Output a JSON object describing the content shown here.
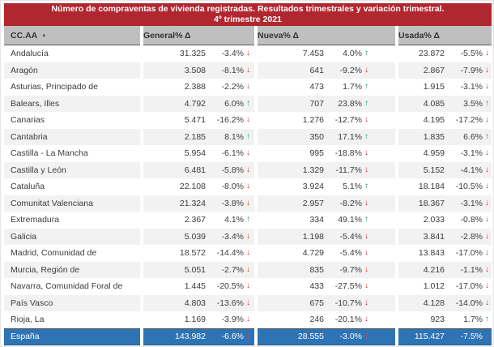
{
  "title": {
    "line1": "Número de compraventas de vivienda registradas. Resultados trimestrales  y variación trimestral.",
    "line2": "4º trimestre 2021"
  },
  "columns": {
    "ccaa": "CC.AA",
    "general": "General",
    "pct_delta_general": "% Δ",
    "nueva": "Nueva",
    "pct_delta_nueva": "% Δ",
    "usada": "Usada",
    "pct_delta_usada": "% Δ"
  },
  "icons": {
    "sort_asc": "▲",
    "up_arrow": "↑",
    "down_arrow": "↓"
  },
  "colors": {
    "title_bg": "#B1272F",
    "title_text": "#FFFFFF",
    "header_bg": "#BFBFBF",
    "header_text": "#333333",
    "row_text": "#3B3B3B",
    "row_alt_bg": "#F2F2F2",
    "total_bg": "#2E74B5",
    "total_text": "#FFFFFF",
    "up_green": "#00A550",
    "down_red": "#E8282B"
  },
  "chart_data": {
    "type": "table",
    "title": "Número de compraventas de vivienda registradas. Resultados trimestrales y variación trimestral.",
    "subtitle": "4º trimestre 2021",
    "columns": [
      "CC.AA",
      "General",
      "% Δ",
      "Nueva",
      "% Δ",
      "Usada",
      "% Δ"
    ],
    "rows": [
      {
        "name": "Andalucía",
        "general": "31.325",
        "general_pct": "-3.4%",
        "general_dir": "down",
        "nueva": "7.453",
        "nueva_pct": "4.0%",
        "nueva_dir": "up",
        "usada": "23.872",
        "usada_pct": "-5.5%",
        "usada_dir": "down"
      },
      {
        "name": "Aragón",
        "general": "3.508",
        "general_pct": "-8.1%",
        "general_dir": "down",
        "nueva": "641",
        "nueva_pct": "-9.2%",
        "nueva_dir": "down",
        "usada": "2.867",
        "usada_pct": "-7.9%",
        "usada_dir": "down"
      },
      {
        "name": "Asturias, Principado de",
        "general": "2.388",
        "general_pct": "-2.2%",
        "general_dir": "down",
        "nueva": "473",
        "nueva_pct": "1.7%",
        "nueva_dir": "up",
        "usada": "1.915",
        "usada_pct": "-3.1%",
        "usada_dir": "down"
      },
      {
        "name": "Balears, Illes",
        "general": "4.792",
        "general_pct": "6.0%",
        "general_dir": "up",
        "nueva": "707",
        "nueva_pct": "23.8%",
        "nueva_dir": "up",
        "usada": "4.085",
        "usada_pct": "3.5%",
        "usada_dir": "up"
      },
      {
        "name": "Canarias",
        "general": "5.471",
        "general_pct": "-16.2%",
        "general_dir": "down",
        "nueva": "1.276",
        "nueva_pct": "-12.7%",
        "nueva_dir": "down",
        "usada": "4.195",
        "usada_pct": "-17.2%",
        "usada_dir": "down"
      },
      {
        "name": "Cantabria",
        "general": "2.185",
        "general_pct": "8.1%",
        "general_dir": "up",
        "nueva": "350",
        "nueva_pct": "17.1%",
        "nueva_dir": "up",
        "usada": "1.835",
        "usada_pct": "6.6%",
        "usada_dir": "up"
      },
      {
        "name": "Castilla - La Mancha",
        "general": "5.954",
        "general_pct": "-6.1%",
        "general_dir": "down",
        "nueva": "995",
        "nueva_pct": "-18.8%",
        "nueva_dir": "down",
        "usada": "4.959",
        "usada_pct": "-3.1%",
        "usada_dir": "down"
      },
      {
        "name": "Castilla y León",
        "general": "6.481",
        "general_pct": "-5.8%",
        "general_dir": "down",
        "nueva": "1.329",
        "nueva_pct": "-11.7%",
        "nueva_dir": "down",
        "usada": "5.152",
        "usada_pct": "-4.1%",
        "usada_dir": "down"
      },
      {
        "name": "Cataluña",
        "general": "22.108",
        "general_pct": "-8.0%",
        "general_dir": "down",
        "nueva": "3.924",
        "nueva_pct": "5.1%",
        "nueva_dir": "up",
        "usada": "18.184",
        "usada_pct": "-10.5%",
        "usada_dir": "down"
      },
      {
        "name": "Comunitat Valenciana",
        "general": "21.324",
        "general_pct": "-3.8%",
        "general_dir": "down",
        "nueva": "2.957",
        "nueva_pct": "-8.2%",
        "nueva_dir": "down",
        "usada": "18.367",
        "usada_pct": "-3.1%",
        "usada_dir": "down"
      },
      {
        "name": "Extremadura",
        "general": "2.367",
        "general_pct": "4.1%",
        "general_dir": "up",
        "nueva": "334",
        "nueva_pct": "49.1%",
        "nueva_dir": "up",
        "usada": "2.033",
        "usada_pct": "-0.8%",
        "usada_dir": "down"
      },
      {
        "name": "Galicia",
        "general": "5.039",
        "general_pct": "-3.4%",
        "general_dir": "down",
        "nueva": "1.198",
        "nueva_pct": "-5.4%",
        "nueva_dir": "down",
        "usada": "3.841",
        "usada_pct": "-2.8%",
        "usada_dir": "down"
      },
      {
        "name": "Madrid, Comunidad de",
        "general": "18.572",
        "general_pct": "-14.4%",
        "general_dir": "down",
        "nueva": "4.729",
        "nueva_pct": "-5.4%",
        "nueva_dir": "down",
        "usada": "13.843",
        "usada_pct": "-17.0%",
        "usada_dir": "down"
      },
      {
        "name": "Murcia, Región de",
        "general": "5.051",
        "general_pct": "-2.7%",
        "general_dir": "down",
        "nueva": "835",
        "nueva_pct": "-9.7%",
        "nueva_dir": "down",
        "usada": "4.216",
        "usada_pct": "-1.1%",
        "usada_dir": "down"
      },
      {
        "name": "Navarra, Comunidad Foral de",
        "general": "1.445",
        "general_pct": "-20.5%",
        "general_dir": "down",
        "nueva": "433",
        "nueva_pct": "-27.5%",
        "nueva_dir": "down",
        "usada": "1.012",
        "usada_pct": "-17.0%",
        "usada_dir": "down"
      },
      {
        "name": "País Vasco",
        "general": "4.803",
        "general_pct": "-13.6%",
        "general_dir": "down",
        "nueva": "675",
        "nueva_pct": "-10.7%",
        "nueva_dir": "down",
        "usada": "4.128",
        "usada_pct": "-14.0%",
        "usada_dir": "down"
      },
      {
        "name": "Rioja, La",
        "general": "1.169",
        "general_pct": "-3.9%",
        "general_dir": "down",
        "nueva": "246",
        "nueva_pct": "-20.1%",
        "nueva_dir": "down",
        "usada": "923",
        "usada_pct": "1.7%",
        "usada_dir": "up"
      }
    ],
    "total_row": {
      "name": "España",
      "general": "143.982",
      "general_pct": "-6.6%",
      "general_dir": "down",
      "nueva": "28.555",
      "nueva_pct": "-3.0%",
      "nueva_dir": "down",
      "usada": "115.427",
      "usada_pct": "-7.5%",
      "usada_dir": "down"
    }
  }
}
